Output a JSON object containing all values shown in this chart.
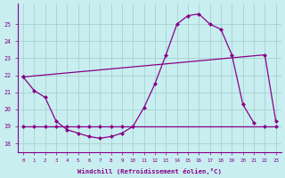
{
  "xlabel": "Windchill (Refroidissement éolien,°C)",
  "xlim": [
    -0.5,
    23.5
  ],
  "ylim": [
    17.5,
    26.2
  ],
  "xticks": [
    0,
    1,
    2,
    3,
    4,
    5,
    6,
    7,
    8,
    9,
    10,
    11,
    12,
    13,
    14,
    15,
    16,
    17,
    18,
    19,
    20,
    21,
    22,
    23
  ],
  "yticks": [
    18,
    19,
    20,
    21,
    22,
    23,
    24,
    25
  ],
  "line_color": "#880088",
  "bg_color": "#c8eef0",
  "grid_color": "#a0ccc8",
  "curve1_x": [
    0,
    1,
    2,
    3,
    4,
    5,
    6,
    7,
    8,
    9,
    10,
    11,
    12,
    13,
    14,
    15,
    16,
    17,
    18,
    19,
    20,
    21
  ],
  "curve1_y": [
    21.9,
    21.1,
    20.7,
    19.3,
    18.8,
    18.6,
    18.4,
    18.3,
    18.4,
    18.6,
    19.0,
    20.1,
    21.5,
    23.2,
    25.0,
    25.5,
    25.6,
    25.0,
    24.7,
    23.2,
    20.3,
    19.2
  ],
  "curve2_x": [
    0,
    22,
    23
  ],
  "curve2_y": [
    21.9,
    23.2,
    19.3
  ],
  "curve3_x": [
    0,
    1,
    2,
    3,
    4,
    5,
    6,
    7,
    8,
    9,
    10,
    22,
    23
  ],
  "curve3_y": [
    19.0,
    19.0,
    19.0,
    19.0,
    19.0,
    19.0,
    19.0,
    19.0,
    19.0,
    19.0,
    19.0,
    19.0,
    19.0
  ]
}
